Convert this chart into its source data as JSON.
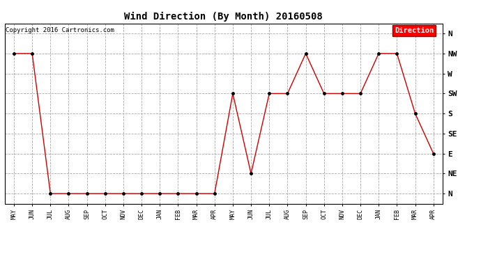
{
  "title": "Wind Direction (By Month) 20160508",
  "copyright_text": "Copyright 2016 Cartronics.com",
  "legend_label": "Direction",
  "legend_bg": "#ff0000",
  "legend_text_color": "#ffffff",
  "line_color": "#cc0000",
  "marker_color": "#000000",
  "background_color": "#ffffff",
  "grid_color": "#aaaaaa",
  "x_labels": [
    "MAY",
    "JUN",
    "JUL",
    "AUG",
    "SEP",
    "OCT",
    "NOV",
    "DEC",
    "JAN",
    "FEB",
    "MAR",
    "APR",
    "MAY",
    "JUN",
    "JUL",
    "AUG",
    "SEP",
    "OCT",
    "NOV",
    "DEC",
    "JAN",
    "FEB",
    "MAR",
    "APR"
  ],
  "y_labels": [
    "N",
    "NE",
    "E",
    "SE",
    "S",
    "SW",
    "W",
    "NW",
    "N"
  ],
  "y_values": [
    0,
    1,
    2,
    3,
    4,
    5,
    6,
    7,
    8
  ],
  "data_values": [
    7,
    7,
    0,
    0,
    0,
    0,
    0,
    0,
    0,
    0,
    0,
    0,
    5,
    1,
    5,
    5,
    7,
    5,
    5,
    5,
    7,
    7,
    4,
    2
  ],
  "figsize": [
    6.9,
    3.75
  ],
  "dpi": 100
}
